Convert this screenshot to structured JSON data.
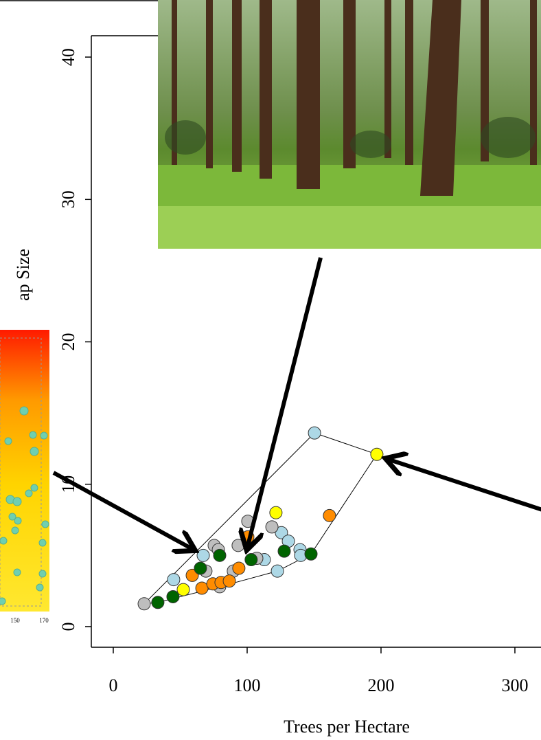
{
  "chart_data": {
    "type": "scatter",
    "xlabel": "Trees per Hectare",
    "ylabel": "ap Size",
    "xlim": [
      -16.4,
      319.5
    ],
    "ylim": [
      -1.45,
      41.5
    ],
    "xticks": [
      0,
      100,
      200,
      300
    ],
    "yticks": [
      0,
      10,
      20,
      30,
      40
    ],
    "hull": true,
    "inset_xticks": [
      150,
      170
    ],
    "series": [
      {
        "color": "#add8e6",
        "x": [
          150.3,
          67.2,
          45.1,
          122.6,
          125.6,
          130.8,
          139.5,
          140,
          112.8
        ],
        "values": [
          13.6,
          5.0,
          3.3,
          3.9,
          6.6,
          6.0,
          5.4,
          5.0,
          4.7
        ]
      },
      {
        "color": "#bebebe",
        "x": [
          23.1,
          100.5,
          118.5,
          75.4,
          78.5,
          69.2,
          93.3,
          79.5,
          89.7,
          107.2
        ],
        "values": [
          1.6,
          7.4,
          7.0,
          5.7,
          5.4,
          3.9,
          5.7,
          2.8,
          3.9,
          4.8
        ]
      },
      {
        "color": "#ff8c00",
        "x": [
          59,
          66.2,
          74.4,
          80.5,
          86.7,
          93.8,
          100.5,
          161.5
        ],
        "values": [
          3.6,
          2.7,
          3.0,
          3.1,
          3.2,
          4.1,
          6.3,
          7.8
        ]
      },
      {
        "color": "#006400",
        "x": [
          33.3,
          44.6,
          79.5,
          65.1,
          127.7,
          147.7,
          103
        ],
        "values": [
          1.7,
          2.1,
          5.0,
          4.1,
          5.3,
          5.1,
          4.7
        ]
      },
      {
        "color": "#ffff00",
        "x": [
          196.9,
          121.5,
          52.3
        ],
        "values": [
          12.1,
          8.0,
          2.6
        ]
      }
    ]
  }
}
